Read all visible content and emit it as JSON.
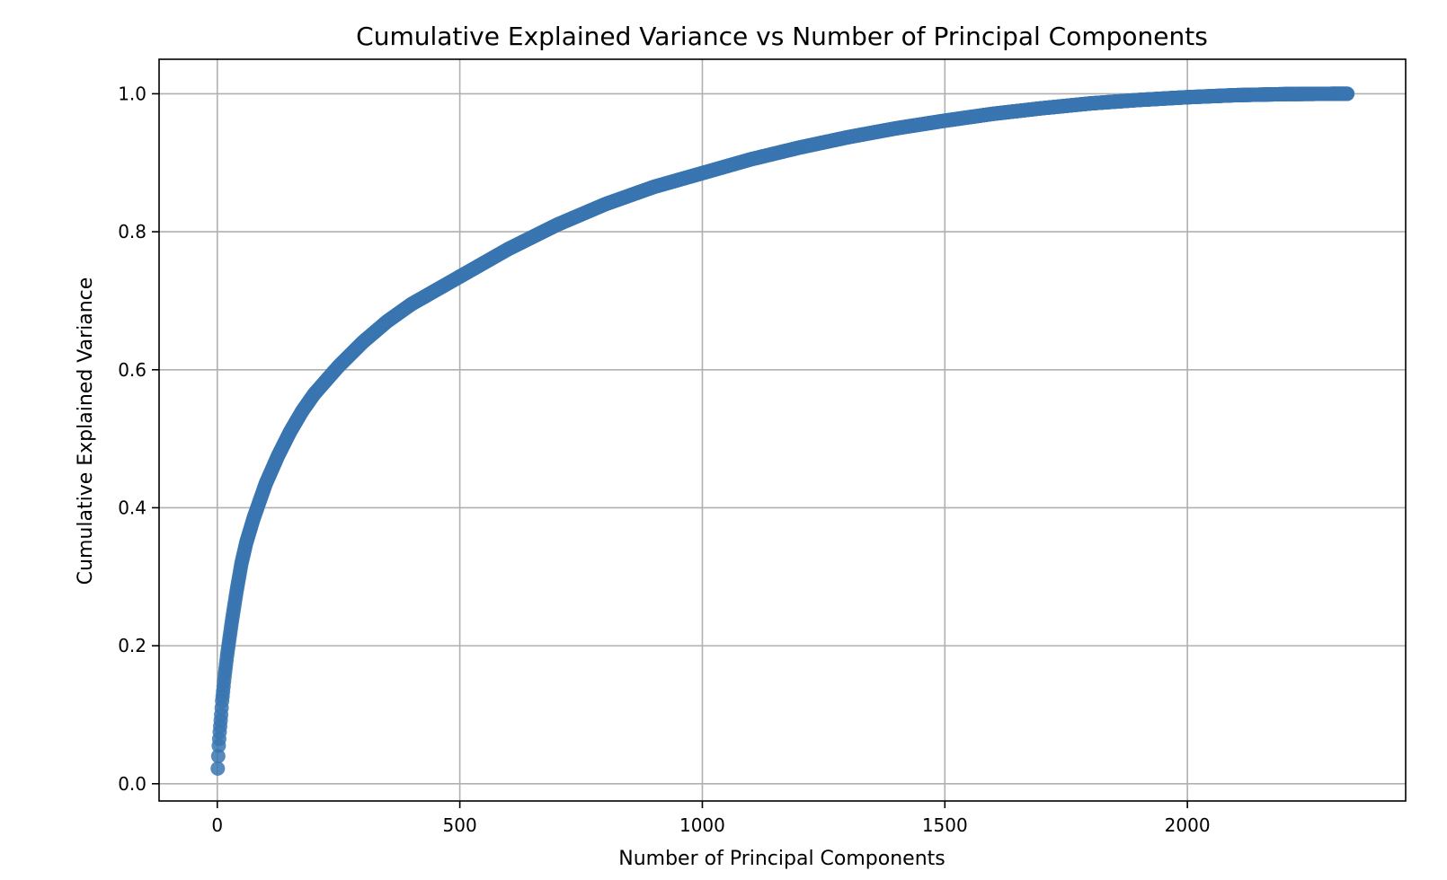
{
  "chart_data": {
    "type": "scatter",
    "title": "Cumulative Explained Variance vs Number of Principal Components",
    "xlabel": "Number of Principal Components",
    "ylabel": "Cumulative Explained Variance",
    "xlim": [
      -120,
      2450
    ],
    "ylim": [
      -0.025,
      1.05
    ],
    "xticks": [
      0,
      500,
      1000,
      1500,
      2000
    ],
    "xtick_labels": [
      "0",
      "500",
      "1000",
      "1500",
      "2000"
    ],
    "yticks": [
      0.0,
      0.2,
      0.4,
      0.6,
      0.8,
      1.0
    ],
    "ytick_labels": [
      "0.0",
      "0.2",
      "0.4",
      "0.6",
      "0.8",
      "1.0"
    ],
    "grid": true,
    "marker_color": "#3a75b0",
    "series": [
      {
        "x": [
          1,
          2,
          3,
          5,
          8,
          10,
          15,
          20,
          25,
          30,
          40,
          50,
          60,
          75,
          100,
          125,
          150,
          175,
          200,
          250,
          300,
          350,
          400,
          450,
          500,
          600,
          700,
          800,
          900,
          1000,
          1100,
          1200,
          1300,
          1400,
          1500,
          1600,
          1700,
          1800,
          1900,
          2000,
          2100,
          2200,
          2300,
          2330
        ],
        "y": [
          0.022,
          0.04,
          0.055,
          0.075,
          0.1,
          0.12,
          0.155,
          0.185,
          0.21,
          0.235,
          0.28,
          0.32,
          0.35,
          0.385,
          0.435,
          0.475,
          0.51,
          0.54,
          0.565,
          0.605,
          0.64,
          0.67,
          0.695,
          0.715,
          0.735,
          0.775,
          0.81,
          0.84,
          0.865,
          0.885,
          0.905,
          0.922,
          0.937,
          0.95,
          0.961,
          0.971,
          0.979,
          0.986,
          0.991,
          0.995,
          0.998,
          0.9995,
          1.0,
          1.0
        ]
      }
    ]
  }
}
